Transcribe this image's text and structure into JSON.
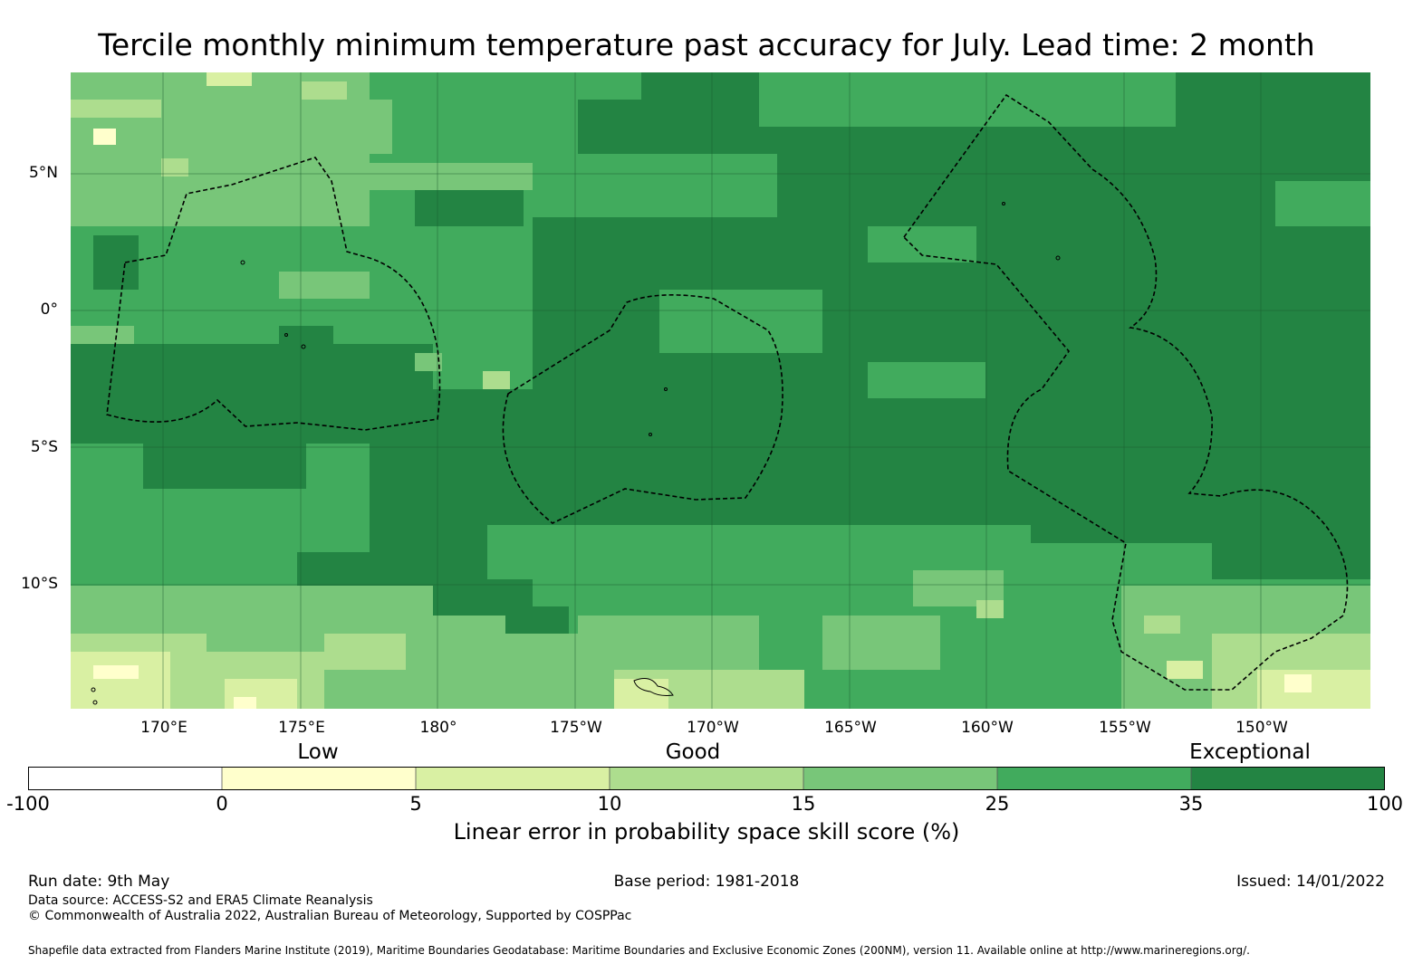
{
  "title": "Tercile monthly minimum temperature past accuracy for July. Lead time: 2 month",
  "map": {
    "lat_labels": [
      "5°N",
      "0°",
      "5°S",
      "10°S"
    ],
    "lon_labels": [
      "170°E",
      "175°E",
      "180°",
      "175°W",
      "170°W",
      "165°W",
      "160°W",
      "155°W",
      "150°W"
    ],
    "lon_range_deg_east": [
      166.6,
      213.9
    ],
    "lat_range_deg": [
      -14.5,
      8.7
    ],
    "colors": {
      "exceptional_dark": "#238443",
      "very_good": "#41ab5d",
      "good": "#78c679",
      "fair": "#addd8e",
      "low": "#d9f0a3",
      "very_low": "#ffffcc",
      "none": "#ffffff"
    }
  },
  "colorbar": {
    "category_labels": [
      "Low",
      "Good",
      "Exceptional"
    ],
    "ticks": [
      "-100",
      "0",
      "5",
      "10",
      "15",
      "25",
      "35",
      "100"
    ],
    "colors": [
      "#ffffff",
      "#ffffcc",
      "#d9f0a3",
      "#addd8e",
      "#78c679",
      "#41ab5d",
      "#238443"
    ],
    "label": "Linear error in probability space skill score (%)"
  },
  "footer": {
    "run_date": "Run date: 9th May",
    "base_period": "Base period: 1981-2018",
    "issued": "Issued: 14/01/2022",
    "data_source": "Data source: ACCESS-S2 and ERA5 Climate Reanalysis",
    "copyright": "© Commonwealth of Australia 2022, Australian Bureau of Meteorology, Supported by COSPPac",
    "shapefile": "Shapefile data extracted from Flanders Marine Institute (2019), Maritime Boundaries Geodatabase: Maritime Boundaries and Exclusive Economic Zones (200NM), version 11. Available online at http://www.marineregions.org/."
  }
}
